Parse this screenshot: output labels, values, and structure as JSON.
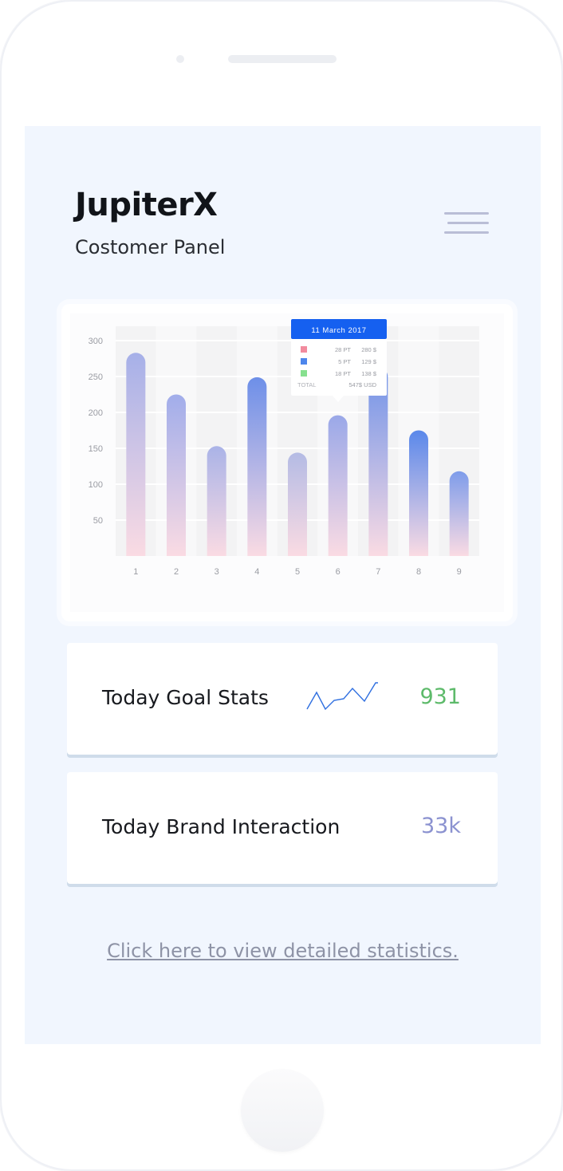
{
  "app": {
    "title": "JupiterX",
    "subtitle": "Costomer Panel",
    "menu_icon": "hamburger-menu-icon"
  },
  "chart_data": {
    "type": "bar",
    "categories": [
      "1",
      "2",
      "3",
      "4",
      "5",
      "6",
      "7",
      "8",
      "9"
    ],
    "values": [
      283,
      225,
      153,
      249,
      144,
      196,
      263,
      175,
      118
    ],
    "bar_colors": [
      "#a6b0e8",
      "#a1adea",
      "#aab3e7",
      "#6d8fe8",
      "#b4bbe4",
      "#9aa8e8",
      "#6f92e8",
      "#5a88ea",
      "#7e9cea"
    ],
    "gradient_bottom": "#fadbe3",
    "yticks": [
      50,
      100,
      150,
      200,
      250,
      300
    ],
    "ylim": [
      0,
      300
    ],
    "grid": true,
    "tooltip": {
      "title": "11 March 2017",
      "rows": [
        {
          "color": "#f28b9e",
          "pt": "28 PT",
          "amount": "280 $"
        },
        {
          "color": "#4d86ec",
          "pt": "5 PT",
          "amount": "129 $"
        },
        {
          "color": "#87e08f",
          "pt": "18 PT",
          "amount": "138 $"
        }
      ],
      "total_label": "TOTAL",
      "total_value": "547$ USD",
      "header_color": "#1560f0"
    }
  },
  "stats": [
    {
      "label": "Today Goal Stats",
      "value": "931",
      "icon": "sparkline-icon"
    },
    {
      "label": "Today Brand Interaction",
      "value": "33k"
    }
  ],
  "colors": {
    "goal_value": "#5dba6a",
    "brand_value": "#8b92d0",
    "sparkline": "#2f6fe0"
  },
  "link": {
    "label": "Click here to view detailed statistics."
  }
}
